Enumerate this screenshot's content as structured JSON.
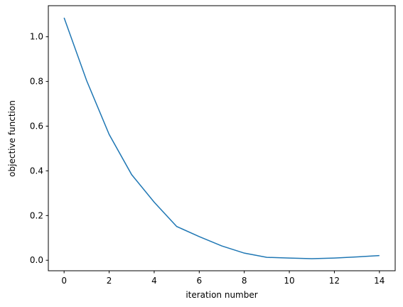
{
  "chart_data": {
    "type": "line",
    "xlabel": "iteration number",
    "ylabel": "objective function",
    "x": [
      0,
      1,
      2,
      3,
      4,
      5,
      6,
      7,
      8,
      9,
      10,
      11,
      12,
      13,
      14
    ],
    "series": [
      {
        "color": "#1f77b4",
        "values": [
          1.085,
          0.804,
          0.563,
          0.383,
          0.26,
          0.151,
          0.106,
          0.064,
          0.032,
          0.013,
          0.01,
          0.007,
          0.01,
          0.015,
          0.021
        ]
      }
    ],
    "xlim": [
      -0.7,
      14.7
    ],
    "xticks": [
      0,
      2,
      4,
      6,
      8,
      10,
      12,
      14
    ],
    "ylim": [
      -0.047,
      1.139
    ],
    "yticks": [
      {
        "value": 0,
        "label": "0.0"
      },
      0.2,
      0.4,
      0.6,
      0.8,
      {
        "value": 1,
        "label": "1.0"
      }
    ],
    "grid": false
  }
}
